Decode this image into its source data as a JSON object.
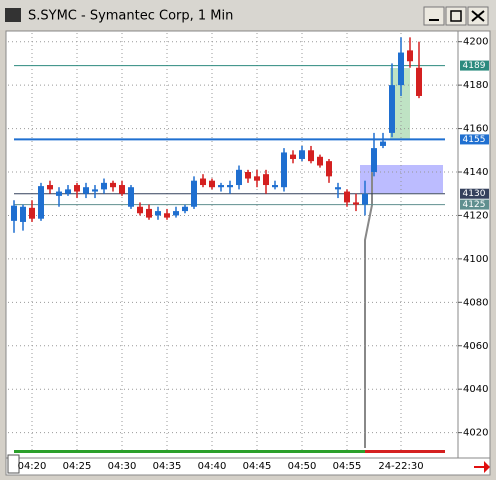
{
  "chart_data": {
    "type": "candlestick",
    "title": "S.SYMC - Symantec Corp, 1 Min",
    "categories": [
      null,
      null,
      "04:20",
      null,
      null,
      null,
      null,
      "04:25",
      null,
      null,
      null,
      null,
      "04:30",
      null,
      null,
      null,
      null,
      "04:35",
      null,
      null,
      null,
      null,
      "04:40",
      null,
      null,
      null,
      null,
      "04:45",
      null,
      null,
      null,
      null,
      "04:50",
      null,
      null,
      null,
      null,
      "04:55",
      null,
      null,
      null,
      null,
      null,
      "24-22:30",
      null,
      null
    ],
    "open": [
      4117.5,
      4117,
      4123.5,
      4118.5,
      4134,
      4129,
      4130,
      4134,
      4130,
      4131,
      4132,
      4135,
      4134,
      4124,
      4124,
      4123,
      4120,
      4121,
      4120,
      4122,
      4124,
      4137,
      4136,
      4133,
      4133,
      4134,
      4140,
      4138,
      4139,
      4133,
      4133,
      4148,
      4146,
      4150,
      4147,
      4145,
      4132,
      4131,
      4126,
      4125,
      4140,
      4152,
      4158,
      4180,
      4196,
      4188
    ],
    "high": [
      4127,
      4125,
      4127,
      4135,
      4136,
      4133,
      4134,
      4135,
      4135,
      4134,
      4137,
      4136,
      4136,
      4134,
      4126,
      4125,
      4124,
      4123,
      4124,
      4125,
      4138,
      4139,
      4137,
      4135,
      4136,
      4143,
      4141,
      4141,
      4141,
      4136,
      4151,
      4150,
      4152,
      4152,
      4148,
      4146,
      4135,
      4132,
      4130,
      4136,
      4158,
      4158,
      4190,
      4202,
      4202,
      4200
    ],
    "low": [
      4112,
      4113,
      4117,
      4117.5,
      4130,
      4124,
      4129,
      4128,
      4128,
      4128,
      4130,
      4131,
      4129,
      4123,
      4120,
      4118,
      4118,
      4118,
      4119,
      4121,
      4123,
      4133,
      4132,
      4131,
      4130,
      4132,
      4135,
      4133,
      4130,
      4132,
      4131,
      4144,
      4145,
      4144,
      4142,
      4135,
      4128,
      4124,
      4122,
      4120,
      4138,
      4151,
      4156,
      4175,
      4188,
      4174
    ],
    "close": [
      4124.5,
      4124,
      4118.5,
      4133.5,
      4132,
      4131,
      4132,
      4131,
      4133,
      4132,
      4135,
      4133,
      4130,
      4133,
      4121,
      4119,
      4122,
      4119,
      4122,
      4124,
      4136,
      4134,
      4133,
      4134,
      4134,
      4141,
      4137,
      4136,
      4134,
      4134,
      4149,
      4146,
      4150,
      4145,
      4143,
      4138,
      4133,
      4126,
      4125,
      4130,
      4151,
      4154,
      4180,
      4195,
      4191,
      4175
    ],
    "up_color": "#1f6fd0",
    "down_color": "#d42020",
    "ylim": [
      4012,
      4204
    ],
    "yticks": [
      4200,
      4180,
      4160,
      4140,
      4120,
      4100,
      4080,
      4060,
      4040,
      4020
    ],
    "grid": true,
    "levels": [
      {
        "value": 4189,
        "color": "#2b8a7e"
      },
      {
        "value": 4155,
        "color": "#1f6fd0"
      },
      {
        "value": 4130,
        "color": "#34405c"
      },
      {
        "value": 4125,
        "color": "#5f8f8f"
      }
    ]
  }
}
